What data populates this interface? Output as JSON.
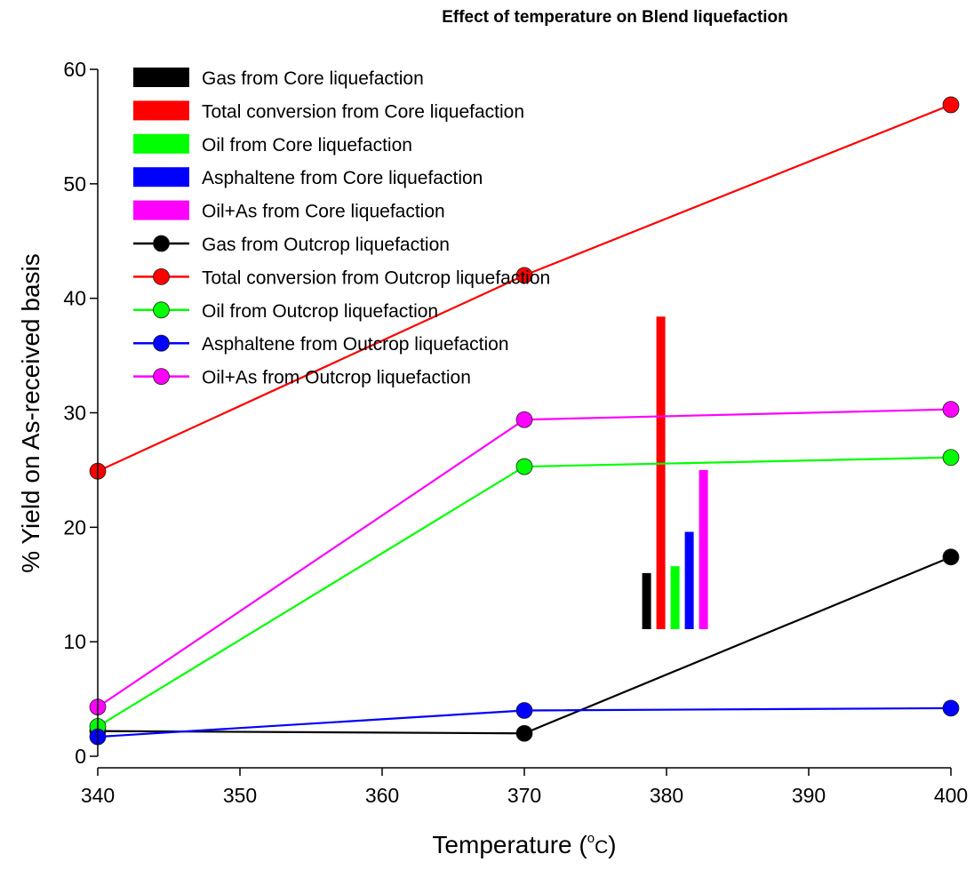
{
  "chart_data": {
    "type": "line",
    "title": "Effect of temperature on Blend liquefaction",
    "xlabel": "Temperature (",
    "xlabel_unit": "C",
    "xlabel_degree": "o",
    "xlabel_close": ")",
    "ylabel": "% Yield on As-received basis",
    "xlim": [
      340,
      400
    ],
    "ylim": [
      0,
      60
    ],
    "xticks": [
      340,
      350,
      360,
      370,
      380,
      390,
      400
    ],
    "yticks": [
      0,
      10,
      20,
      30,
      40,
      50,
      60
    ],
    "grid": false,
    "legend_position": "top-left",
    "bars": [
      {
        "name": "Gas from Core liquefaction",
        "color": "#000000",
        "x": 378.6,
        "value": 16.0,
        "base": 11.1
      },
      {
        "name": "Total conversion from Core liquefaction",
        "color": "#ff0000",
        "x": 379.6,
        "value": 38.4,
        "base": 11.1
      },
      {
        "name": "Oil from Core liquefaction",
        "color": "#00ff00",
        "x": 380.6,
        "value": 16.6,
        "base": 11.1
      },
      {
        "name": "Asphaltene from Core liquefaction",
        "color": "#0000ff",
        "x": 381.6,
        "value": 19.6,
        "base": 11.1
      },
      {
        "name": "Oil+As from Core liquefaction",
        "color": "#ff00ff",
        "x": 382.6,
        "value": 25.0,
        "base": 11.1
      }
    ],
    "series": [
      {
        "name": "Gas from Outcrop liquefaction",
        "color": "#000000",
        "x": [
          340,
          370,
          400
        ],
        "values": [
          2.2,
          2.0,
          17.4
        ]
      },
      {
        "name": "Total conversion from Outcrop liquefaction",
        "color": "#ff0000",
        "x": [
          340,
          370,
          400
        ],
        "values": [
          24.9,
          42.0,
          56.9
        ]
      },
      {
        "name": "Oil from Outcrop liquefaction",
        "color": "#00ff00",
        "x": [
          340,
          370,
          400
        ],
        "values": [
          2.6,
          25.3,
          26.1
        ]
      },
      {
        "name": "Asphaltene from Outcrop liquefaction",
        "color": "#0000ff",
        "x": [
          340,
          370,
          400
        ],
        "values": [
          1.7,
          4.0,
          4.2
        ]
      },
      {
        "name": "Oil+As from Outcrop liquefaction",
        "color": "#ff00ff",
        "x": [
          340,
          370,
          400
        ],
        "values": [
          4.3,
          29.4,
          30.3
        ]
      }
    ]
  }
}
